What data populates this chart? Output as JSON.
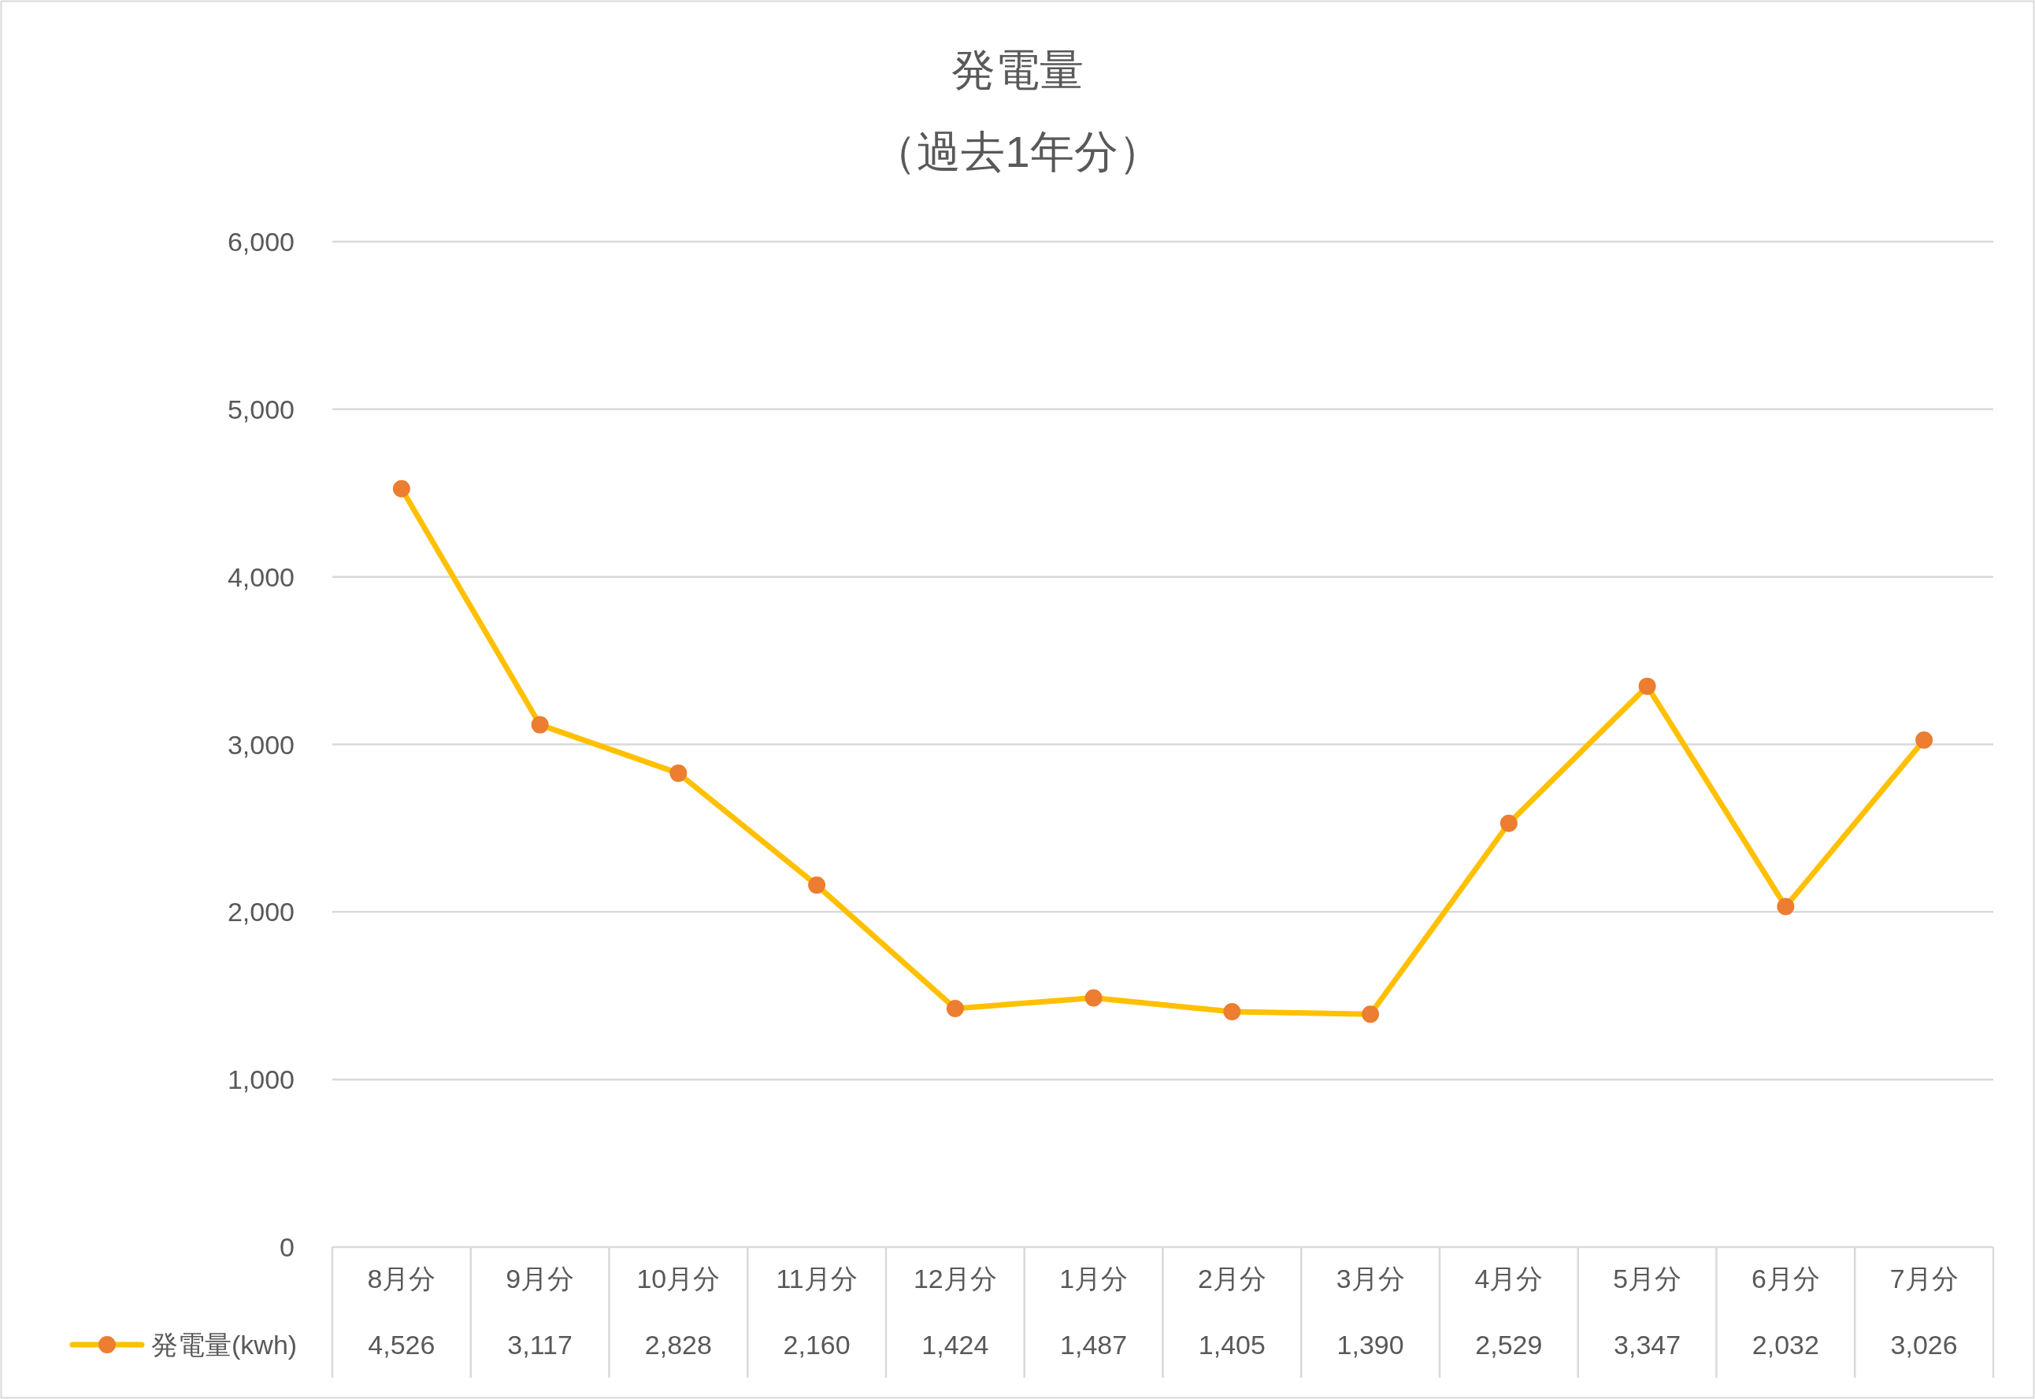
{
  "chart_data": {
    "type": "line",
    "title": "発電量",
    "subtitle": "（過去1年分）",
    "categories": [
      "8月分",
      "9月分",
      "10月分",
      "11月分",
      "12月分",
      "1月分",
      "2月分",
      "3月分",
      "4月分",
      "5月分",
      "6月分",
      "7月分"
    ],
    "series": [
      {
        "name": "発電量(kwh)",
        "color": "#ffc000",
        "values": [
          4526,
          3117,
          2828,
          2160,
          1424,
          1487,
          1405,
          1390,
          2529,
          3347,
          2032,
          3026
        ],
        "value_labels": [
          "4,526",
          "3,117",
          "2,828",
          "2,160",
          "1,424",
          "1,487",
          "1,405",
          "1,390",
          "2,529",
          "3,347",
          "2,032",
          "3,026"
        ]
      }
    ],
    "ylim": [
      0,
      6000
    ],
    "yticks": [
      {
        "value": 0,
        "label": "0"
      },
      {
        "value": 1000,
        "label": "1,000"
      },
      {
        "value": 2000,
        "label": "2,000"
      },
      {
        "value": 3000,
        "label": "3,000"
      },
      {
        "value": 4000,
        "label": "4,000"
      },
      {
        "value": 5000,
        "label": "5,000"
      },
      {
        "value": 6000,
        "label": "6,000"
      }
    ],
    "grid": "y",
    "legend": "bottom left",
    "marker": "circle",
    "line_style": "solid"
  }
}
